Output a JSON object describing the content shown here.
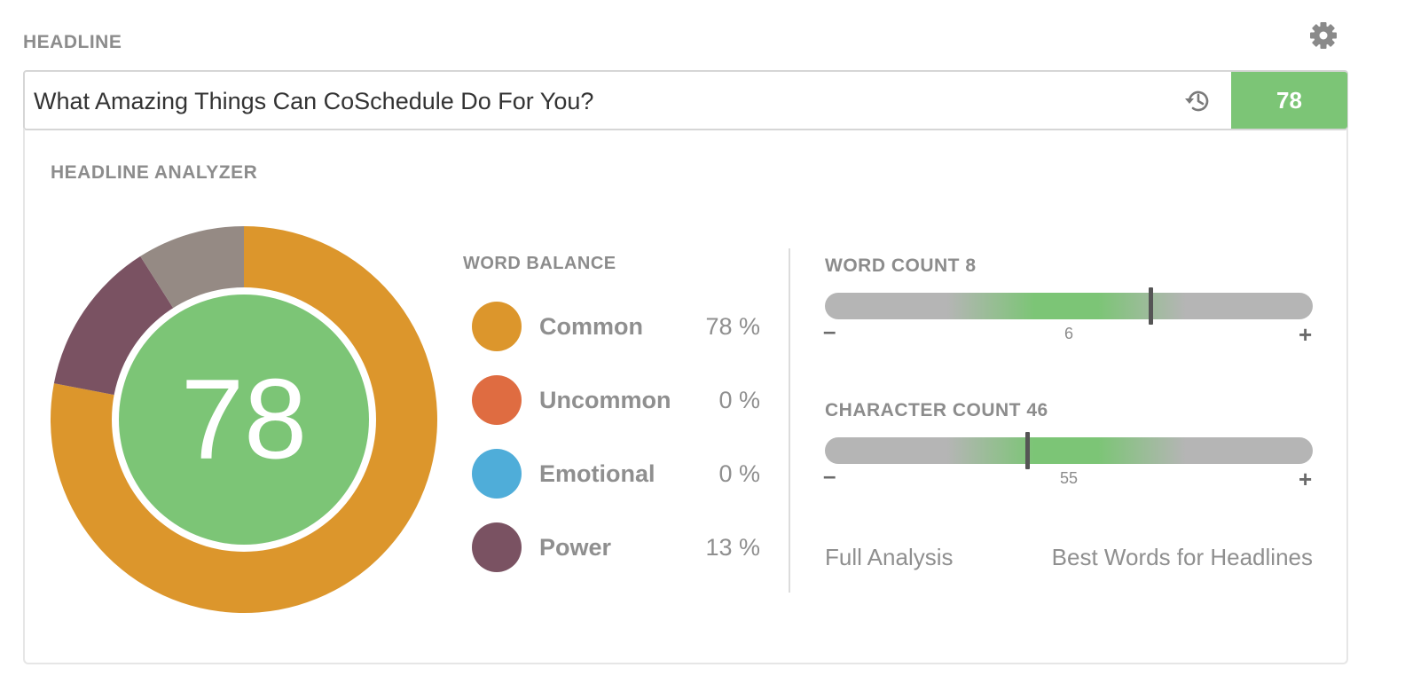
{
  "headline": {
    "label": "HEADLINE",
    "value": "What Amazing Things Can CoSchedule Do For You?",
    "score": "78"
  },
  "icons": {
    "settings": "gear-icon",
    "history": "history-icon"
  },
  "analyzer": {
    "title": "HEADLINE ANALYZER",
    "score": "78",
    "score_color": "#7cc576"
  },
  "word_balance": {
    "title": "WORD BALANCE",
    "items": [
      {
        "label": "Common",
        "percent": "78 %",
        "value": 78,
        "color": "#dc962c"
      },
      {
        "label": "Uncommon",
        "percent": "0 %",
        "value": 0,
        "color": "#df6c41"
      },
      {
        "label": "Emotional",
        "percent": "0 %",
        "value": 0,
        "color": "#4fadd9"
      },
      {
        "label": "Power",
        "percent": "13 %",
        "value": 13,
        "color": "#7a5262"
      }
    ],
    "other_color": "#958a84"
  },
  "word_count": {
    "title": "WORD COUNT 8",
    "target_label": "6",
    "minus": "–",
    "plus": "+"
  },
  "character_count": {
    "title": "CHARACTER COUNT 46",
    "target_label": "55",
    "minus": "–",
    "plus": "+"
  },
  "links": {
    "full_analysis": "Full Analysis",
    "best_words": "Best Words for Headlines"
  }
}
